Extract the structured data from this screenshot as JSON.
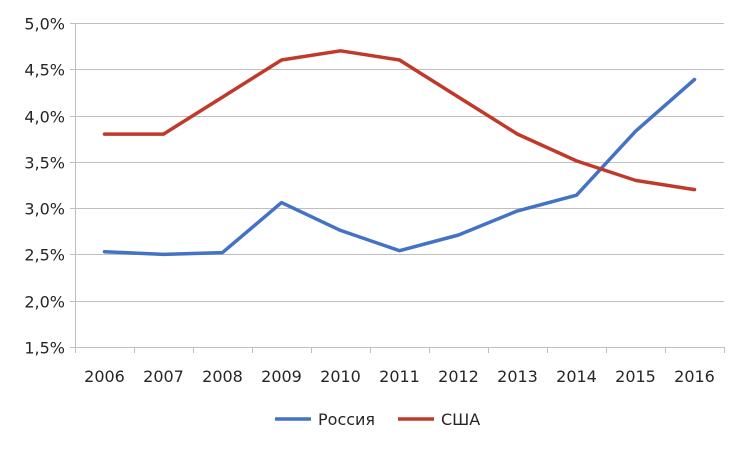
{
  "chart_data": {
    "type": "line",
    "title": "",
    "xlabel": "",
    "ylabel": "",
    "categories": [
      "2006",
      "2007",
      "2008",
      "2009",
      "2010",
      "2011",
      "2012",
      "2013",
      "2014",
      "2015",
      "2016"
    ],
    "ylim": [
      1.5,
      5.0
    ],
    "y_ticks": [
      1.5,
      2.0,
      2.5,
      3.0,
      3.5,
      4.0,
      4.5,
      5.0
    ],
    "y_tick_labels": [
      "1,5%",
      "2,0%",
      "2,5%",
      "3,0%",
      "3,5%",
      "4,0%",
      "4,5%",
      "5,0%"
    ],
    "grid": "horizontal",
    "legend_position": "bottom",
    "series": [
      {
        "name": "Россия",
        "color": "#4472C4",
        "values": [
          2.53,
          2.5,
          2.52,
          3.06,
          2.76,
          2.54,
          2.71,
          2.97,
          3.14,
          3.83,
          4.39
        ]
      },
      {
        "name": "США",
        "color": "#C0392B",
        "values": [
          3.8,
          3.8,
          4.2,
          4.6,
          4.7,
          4.6,
          4.2,
          3.8,
          3.51,
          3.3,
          3.2
        ]
      }
    ]
  }
}
